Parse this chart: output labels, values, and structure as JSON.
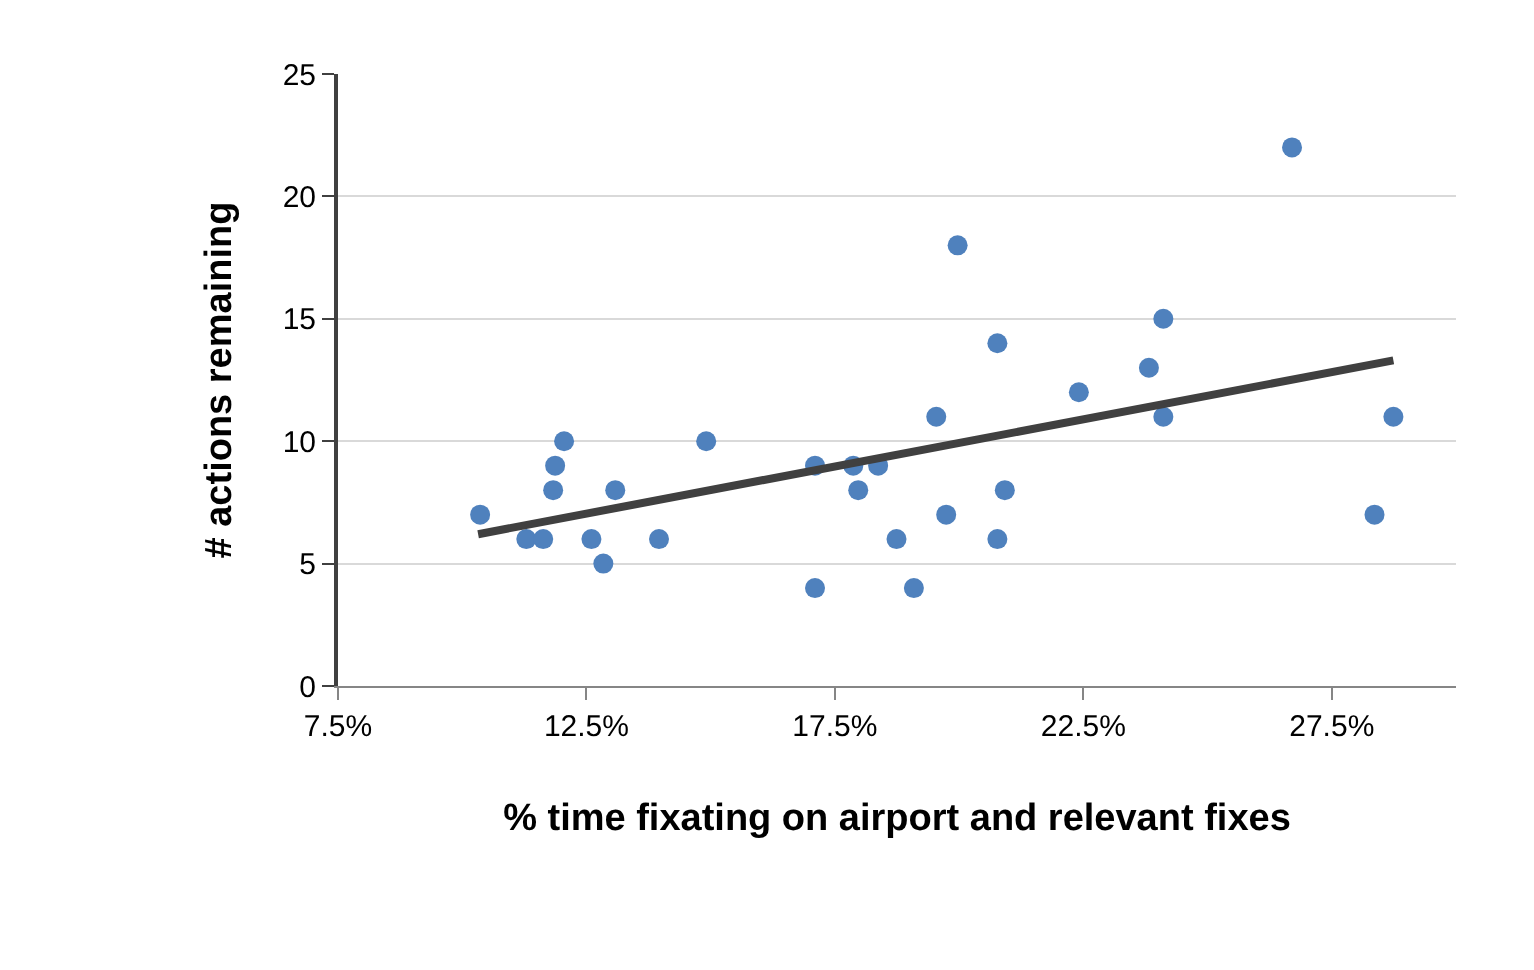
{
  "chart_data": {
    "type": "scatter",
    "xlabel": "% time fixating on airport and relevant fixes",
    "ylabel": "# actions remaining",
    "x": [
      10.36,
      11.29,
      11.63,
      11.83,
      11.87,
      12.05,
      12.6,
      12.84,
      13.08,
      13.96,
      14.91,
      17.1,
      17.1,
      17.87,
      17.97,
      18.37,
      18.74,
      19.09,
      19.54,
      19.97,
      19.74,
      20.77,
      20.92,
      20.77,
      22.41,
      23.82,
      24.11,
      24.11,
      26.7,
      28.36,
      28.74
    ],
    "series": [
      {
        "color": "#4f81bd",
        "values": [
          7,
          6,
          6,
          8,
          9,
          10,
          6,
          5,
          8,
          6,
          10,
          9,
          4,
          9,
          8,
          9,
          6,
          4,
          11,
          18,
          7,
          14,
          8,
          6,
          12,
          13,
          15,
          11,
          22,
          7,
          11
        ]
      },
      {
        "type": "line",
        "marker": "none",
        "color": "#404040",
        "x": [
          10.32,
          28.74
        ],
        "values": [
          6.2,
          13.3
        ]
      }
    ],
    "marker": "circle",
    "grid": "y",
    "xlim": [
      7.5,
      30
    ],
    "xticks": [
      {
        "value": 7.5,
        "label": "7.5%"
      },
      {
        "value": 12.5,
        "label": "12.5%"
      },
      {
        "value": 17.5,
        "label": "17.5%"
      },
      {
        "value": 22.5,
        "label": "22.5%"
      },
      {
        "value": 27.5,
        "label": "27.5%"
      }
    ],
    "ylim": [
      0,
      25
    ],
    "yticks": [
      0,
      5,
      10,
      15,
      20,
      25
    ]
  }
}
